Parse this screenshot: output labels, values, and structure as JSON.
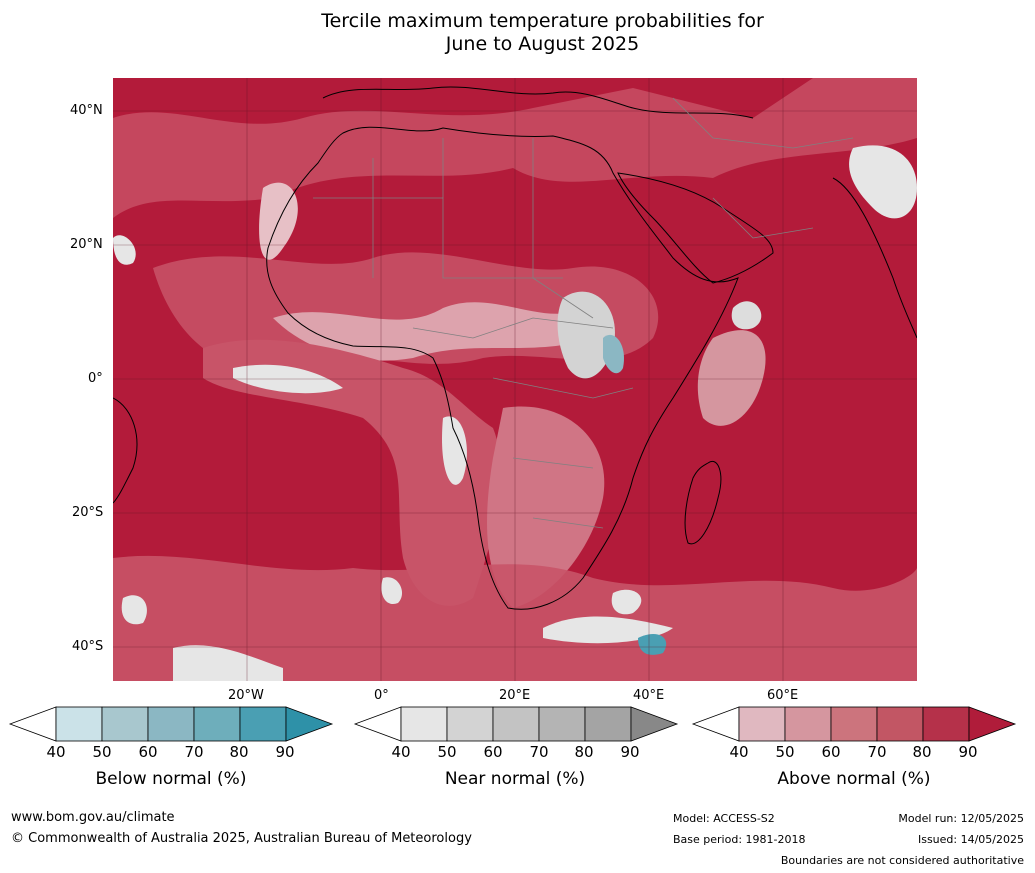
{
  "title": "Tercile maximum temperature probabilities for\nJune to August 2025",
  "map": {
    "lat_labels": [
      "40°N",
      "20°N",
      "0°",
      "20°S",
      "40°S"
    ],
    "lon_labels": [
      "20°W",
      "0°",
      "20°E",
      "40°E",
      "60°E"
    ],
    "colors": {
      "ocean_background": "#b31b3a",
      "land_outline": "#000000",
      "borders": "#808080"
    }
  },
  "legends": [
    {
      "label": "Below normal (%)",
      "ticks": [
        "40",
        "50",
        "60",
        "70",
        "80",
        "90"
      ],
      "colors": [
        "#ffffff",
        "#cbe2e8",
        "#a8c7ce",
        "#8bb7c3",
        "#6eaebb",
        "#4a9fb3",
        "#2e91a8"
      ]
    },
    {
      "label": "Near normal (%)",
      "ticks": [
        "40",
        "50",
        "60",
        "70",
        "80",
        "90"
      ],
      "colors": [
        "#ffffff",
        "#e6e6e6",
        "#d3d3d3",
        "#c3c3c3",
        "#b4b4b4",
        "#a4a4a4",
        "#888888"
      ]
    },
    {
      "label": "Above normal (%)",
      "ticks": [
        "40",
        "50",
        "60",
        "70",
        "80",
        "90"
      ],
      "colors": [
        "#ffffff",
        "#e0b8c0",
        "#d5969f",
        "#cc747d",
        "#c25664",
        "#b5314a",
        "#b01c3a"
      ]
    }
  ],
  "footer": {
    "website": "www.bom.gov.au/climate",
    "copyright": "© Commonwealth of Australia 2025, Australian Bureau of Meteorology",
    "model": "Model: ACCESS-S2",
    "base_period": "Base period: 1981-2018",
    "model_run": "Model run: 12/05/2025",
    "issued": "Issued: 14/05/2025",
    "disclaimer": "Boundaries are not considered authoritative"
  }
}
